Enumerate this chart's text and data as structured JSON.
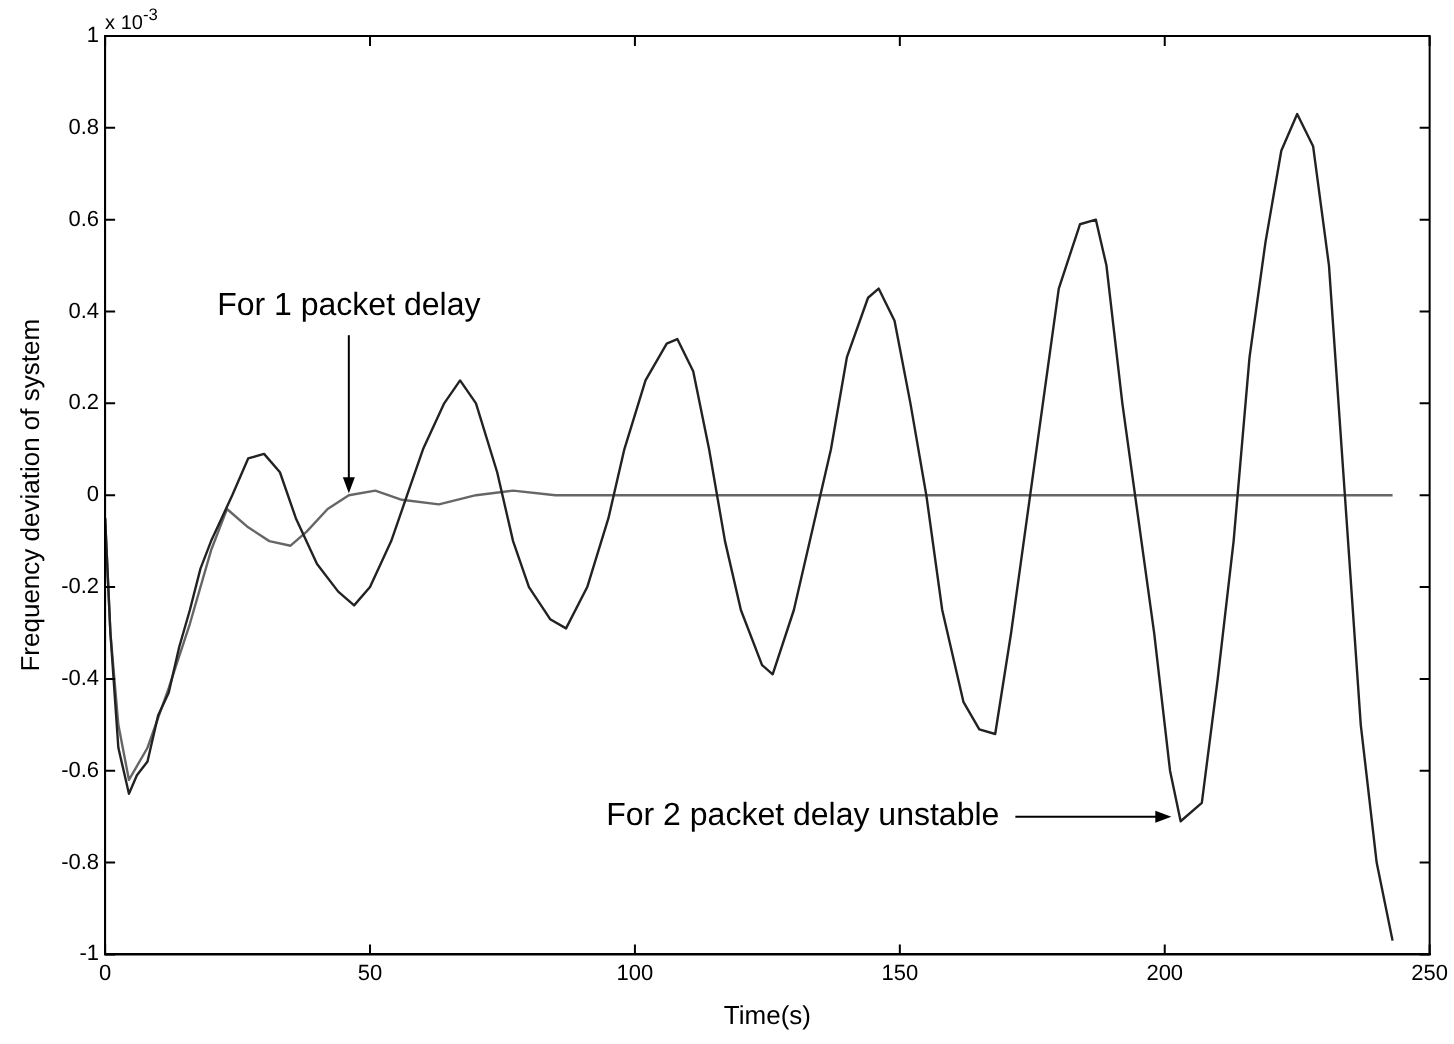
{
  "chart_data": {
    "type": "line",
    "xlabel": "Time(s)",
    "ylabel": "Frequency deviation of system",
    "xlim": [
      0,
      250
    ],
    "xticks": [
      0,
      50,
      100,
      150,
      200,
      250
    ],
    "ylim": [
      -1,
      1
    ],
    "yticks": [
      -1,
      -0.8,
      -0.6,
      -0.4,
      -0.2,
      0,
      0.2,
      0.4,
      0.6,
      0.8,
      1
    ],
    "grid": false,
    "legend": false,
    "marker": "none",
    "line_style": "solid",
    "annotations": [
      "x 10$^{-3}$",
      {
        "text": "For 1 packet delay",
        "x": 46,
        "y": 0.0
      },
      {
        "text": "For 2 packet delay unstable",
        "x": 202,
        "y": -0.7
      }
    ],
    "series": [
      {
        "color": "#222222",
        "x": [
          0,
          1,
          2.5,
          4.5,
          6,
          8,
          10,
          12,
          14,
          16,
          18,
          20,
          22,
          24,
          27,
          30,
          33,
          36,
          40,
          44,
          47,
          50,
          54,
          57,
          60,
          64,
          67,
          70,
          74,
          77,
          80,
          84,
          87,
          91,
          95,
          98,
          102,
          106,
          108,
          111,
          114,
          117,
          120,
          124,
          126,
          130,
          134,
          137,
          140,
          144,
          146,
          149,
          152,
          155,
          158,
          162,
          165,
          168,
          171,
          174,
          177,
          180,
          184,
          187,
          189,
          192,
          195,
          198,
          201,
          203,
          207,
          210,
          213,
          216,
          219,
          222,
          225,
          228,
          231,
          234,
          237,
          240,
          243
        ],
        "values": [
          -0.05,
          -0.3,
          -0.55,
          -0.65,
          -0.61,
          -0.58,
          -0.48,
          -0.43,
          -0.33,
          -0.25,
          -0.16,
          -0.1,
          -0.05,
          0.0,
          0.08,
          0.09,
          0.05,
          -0.05,
          -0.15,
          -0.21,
          -0.24,
          -0.2,
          -0.1,
          0.0,
          0.1,
          0.2,
          0.25,
          0.2,
          0.05,
          -0.1,
          -0.2,
          -0.27,
          -0.29,
          -0.2,
          -0.05,
          0.1,
          0.25,
          0.33,
          0.34,
          0.27,
          0.1,
          -0.1,
          -0.25,
          -0.37,
          -0.39,
          -0.25,
          -0.05,
          0.1,
          0.3,
          0.43,
          0.45,
          0.38,
          0.2,
          0.0,
          -0.25,
          -0.45,
          -0.51,
          -0.52,
          -0.3,
          -0.05,
          0.2,
          0.45,
          0.59,
          0.6,
          0.5,
          0.2,
          -0.05,
          -0.3,
          -0.6,
          -0.71,
          -0.67,
          -0.4,
          -0.1,
          0.3,
          0.55,
          0.75,
          0.83,
          0.76,
          0.5,
          0.0,
          -0.5,
          -0.8,
          -0.97
        ]
      },
      {
        "color": "#666666",
        "x": [
          0,
          1,
          2.5,
          4.5,
          8,
          12,
          16,
          20,
          23,
          27,
          31,
          35,
          38,
          42,
          46,
          51,
          56,
          63,
          70,
          77,
          85,
          100,
          150,
          200,
          243
        ],
        "values": [
          -0.05,
          -0.3,
          -0.5,
          -0.62,
          -0.55,
          -0.42,
          -0.28,
          -0.12,
          -0.03,
          -0.07,
          -0.1,
          -0.11,
          -0.08,
          -0.03,
          0.0,
          0.01,
          -0.01,
          -0.02,
          0.0,
          0.01,
          0.0,
          0.0,
          0.0,
          0.0,
          0.0
        ]
      }
    ]
  }
}
